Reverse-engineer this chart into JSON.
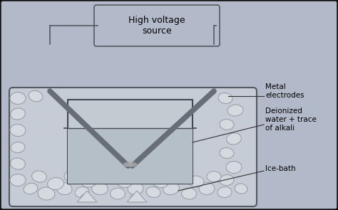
{
  "bg_color": "#b2baca",
  "border_color": "#111111",
  "title": "High voltage\nsource",
  "labels": {
    "metal_electrodes": "Metal\nelectrodes",
    "deionized_water": "Deionized\nwater + trace\nof alkali",
    "ice_bath": "Ice-bath"
  },
  "container_color": "#c5ccd6",
  "inner_vessel_color": "#c2cad2",
  "ice_color": "#d5dae0",
  "water_color": "#b5bfc8",
  "electrode_color": "#686e78",
  "hv_box_color": "#b2baca",
  "hv_box_border": "#555a62",
  "wire_color": "#555a62",
  "ice_edge_color": "#9aa0a8",
  "spark_color": "#aaaaaa",
  "label_line_color": "#333333",
  "beaker_edge": "#444850"
}
